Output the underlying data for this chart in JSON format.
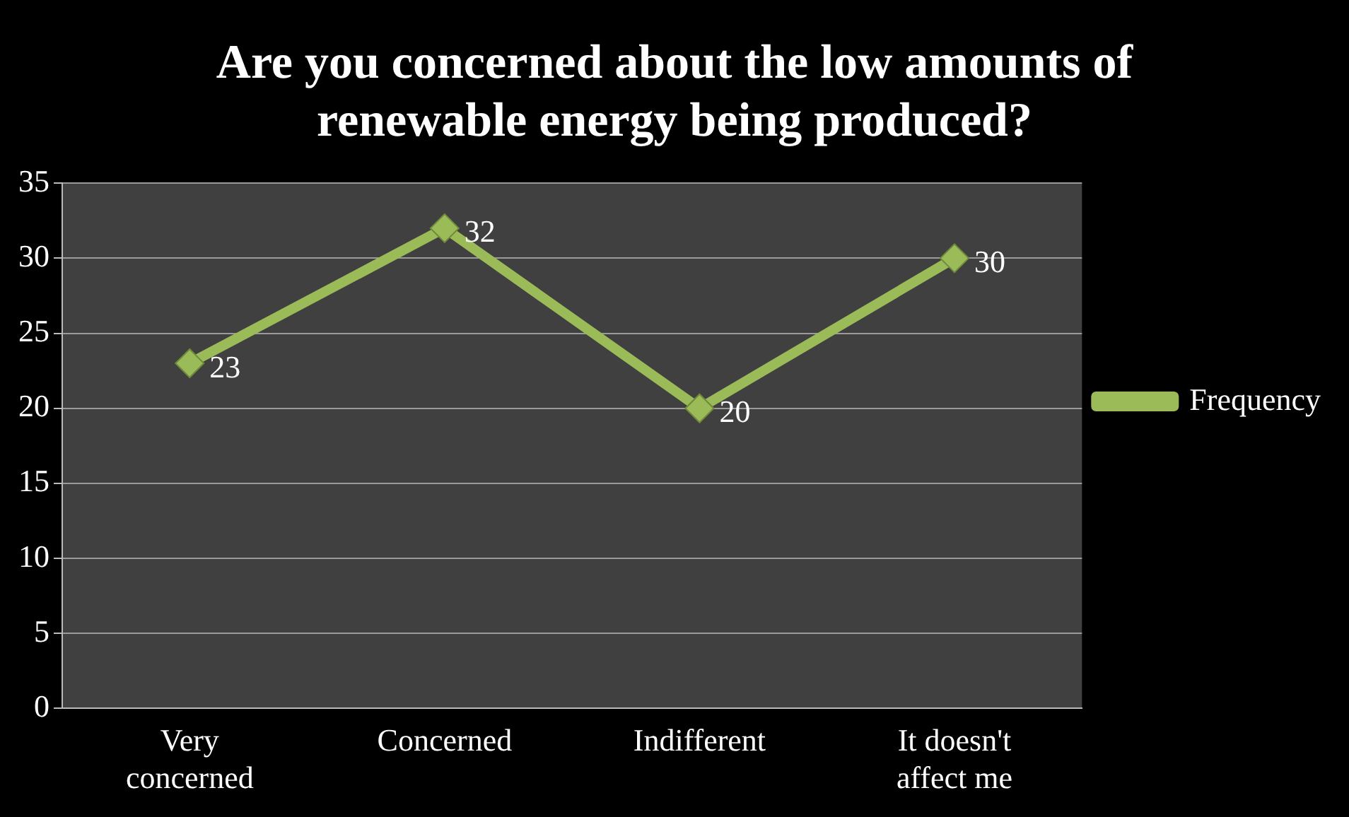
{
  "chart_data": {
    "type": "line",
    "title": "Are you concerned about the low amounts of renewable energy being produced?",
    "categories": [
      "Very concerned",
      "Concerned",
      "Indifferent",
      "It doesn't affect me"
    ],
    "series": [
      {
        "name": "Frequency",
        "color": "#9bbb59",
        "values": [
          23,
          32,
          20,
          30
        ]
      }
    ],
    "ylim": [
      0,
      35
    ],
    "yticks": [
      0,
      5,
      10,
      15,
      20,
      25,
      30,
      35
    ],
    "grid": "y",
    "legend": "right",
    "marker": "diamond",
    "data_labels": true
  }
}
